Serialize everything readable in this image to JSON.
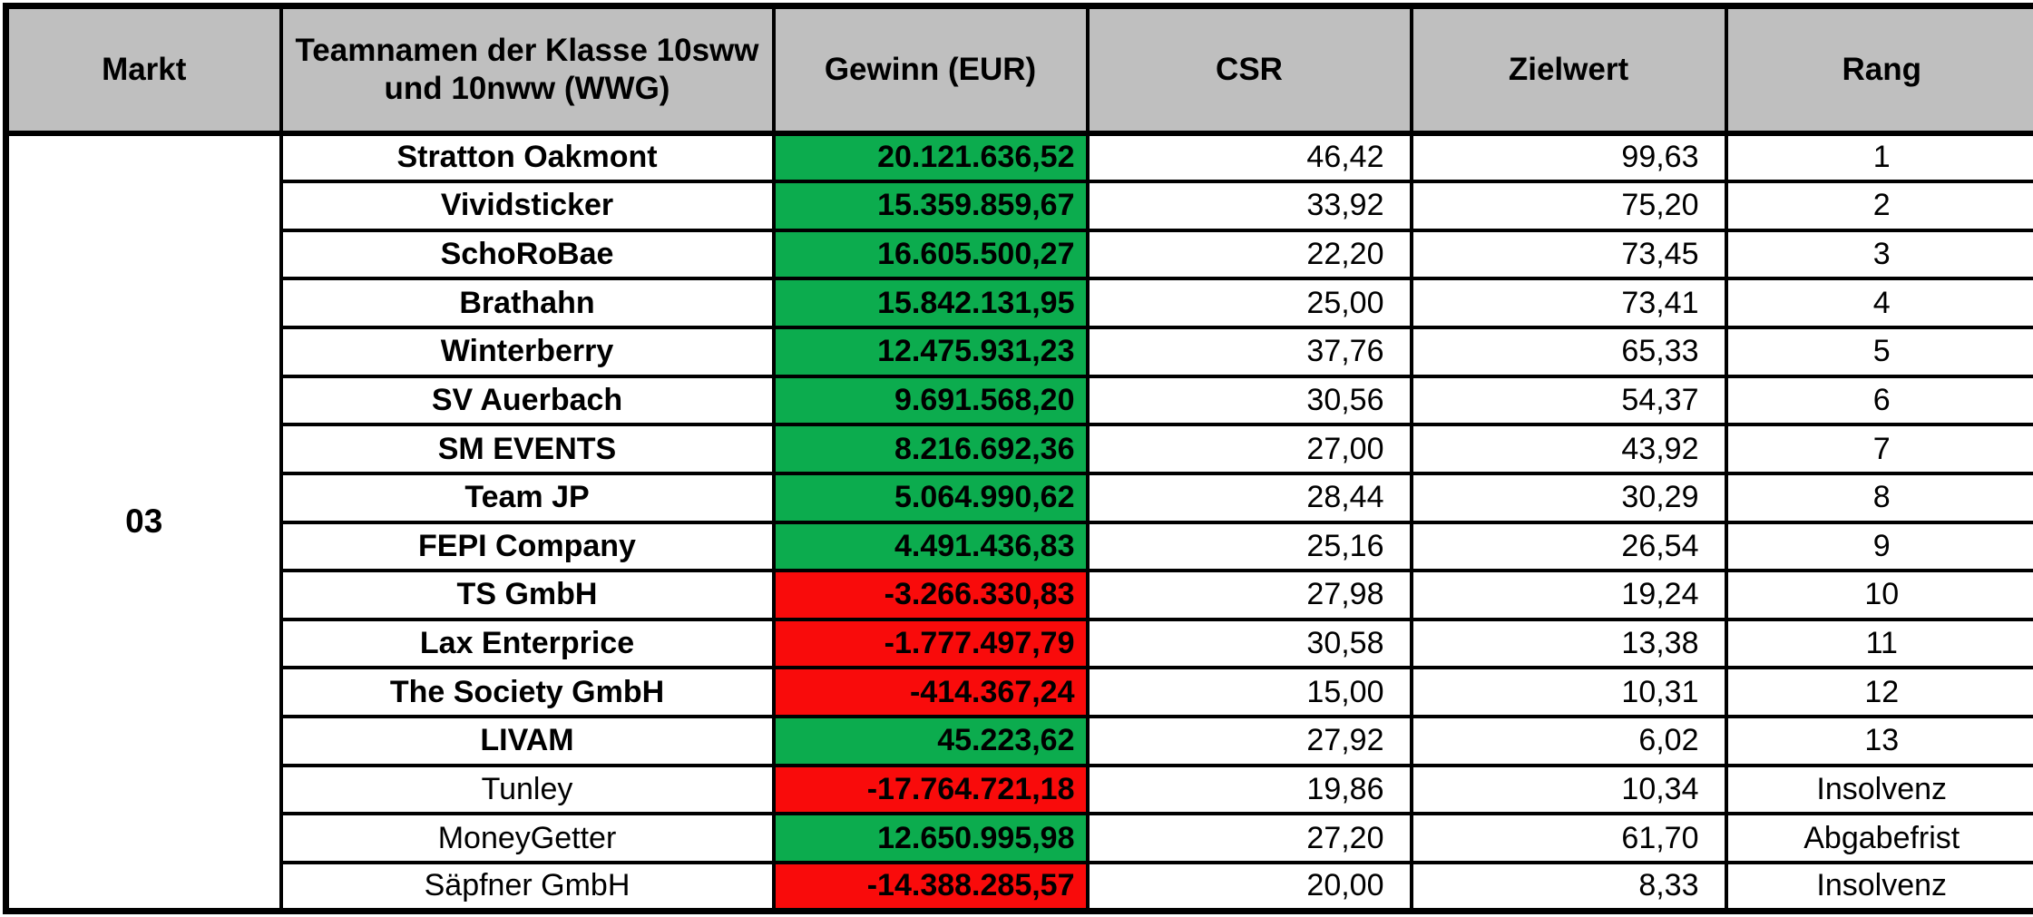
{
  "header": {
    "columns": [
      "Markt",
      "Teamnamen der Klasse 10sww und 10nww (WWG)",
      "Gewinn (EUR)",
      "CSR",
      "Zielwert",
      "Rang"
    ]
  },
  "market": "03",
  "colors": {
    "positive": "#0CAC4E",
    "negative": "#F90B0B",
    "header_bg": "#BFBFBF",
    "border": "#000000"
  },
  "rows": [
    {
      "team": "Stratton Oakmont",
      "gewinn": "20.121.636,52",
      "gewinn_state": "positive",
      "csr": "46,42",
      "zielwert": "99,63",
      "rang": "1",
      "team_bold": true
    },
    {
      "team": "Vividsticker",
      "gewinn": "15.359.859,67",
      "gewinn_state": "positive",
      "csr": "33,92",
      "zielwert": "75,20",
      "rang": "2",
      "team_bold": true
    },
    {
      "team": "SchoRoBae",
      "gewinn": "16.605.500,27",
      "gewinn_state": "positive",
      "csr": "22,20",
      "zielwert": "73,45",
      "rang": "3",
      "team_bold": true
    },
    {
      "team": "Brathahn",
      "gewinn": "15.842.131,95",
      "gewinn_state": "positive",
      "csr": "25,00",
      "zielwert": "73,41",
      "rang": "4",
      "team_bold": true
    },
    {
      "team": "Winterberry",
      "gewinn": "12.475.931,23",
      "gewinn_state": "positive",
      "csr": "37,76",
      "zielwert": "65,33",
      "rang": "5",
      "team_bold": true
    },
    {
      "team": "SV Auerbach",
      "gewinn": "9.691.568,20",
      "gewinn_state": "positive",
      "csr": "30,56",
      "zielwert": "54,37",
      "rang": "6",
      "team_bold": true
    },
    {
      "team": "SM EVENTS",
      "gewinn": "8.216.692,36",
      "gewinn_state": "positive",
      "csr": "27,00",
      "zielwert": "43,92",
      "rang": "7",
      "team_bold": true
    },
    {
      "team": "Team JP",
      "gewinn": "5.064.990,62",
      "gewinn_state": "positive",
      "csr": "28,44",
      "zielwert": "30,29",
      "rang": "8",
      "team_bold": true
    },
    {
      "team": "FEPI Company",
      "gewinn": "4.491.436,83",
      "gewinn_state": "positive",
      "csr": "25,16",
      "zielwert": "26,54",
      "rang": "9",
      "team_bold": true
    },
    {
      "team": "TS GmbH",
      "gewinn": "-3.266.330,83",
      "gewinn_state": "negative",
      "csr": "27,98",
      "zielwert": "19,24",
      "rang": "10",
      "team_bold": true
    },
    {
      "team": "Lax Enterprice",
      "gewinn": "-1.777.497,79",
      "gewinn_state": "negative",
      "csr": "30,58",
      "zielwert": "13,38",
      "rang": "11",
      "team_bold": true
    },
    {
      "team": "The Society GmbH",
      "gewinn": "-414.367,24",
      "gewinn_state": "negative",
      "csr": "15,00",
      "zielwert": "10,31",
      "rang": "12",
      "team_bold": true
    },
    {
      "team": "LIVAM",
      "gewinn": "45.223,62",
      "gewinn_state": "positive",
      "csr": "27,92",
      "zielwert": "6,02",
      "rang": "13",
      "team_bold": true
    },
    {
      "team": "Tunley",
      "gewinn": "-17.764.721,18",
      "gewinn_state": "negative",
      "csr": "19,86",
      "zielwert": "10,34",
      "rang": "Insolvenz",
      "team_bold": false
    },
    {
      "team": "MoneyGetter",
      "gewinn": "12.650.995,98",
      "gewinn_state": "positive",
      "csr": "27,20",
      "zielwert": "61,70",
      "rang": "Abgabefrist",
      "team_bold": false
    },
    {
      "team": "Säpfner GmbH",
      "gewinn": "-14.388.285,57",
      "gewinn_state": "negative",
      "csr": "20,00",
      "zielwert": "8,33",
      "rang": "Insolvenz",
      "team_bold": false
    }
  ]
}
